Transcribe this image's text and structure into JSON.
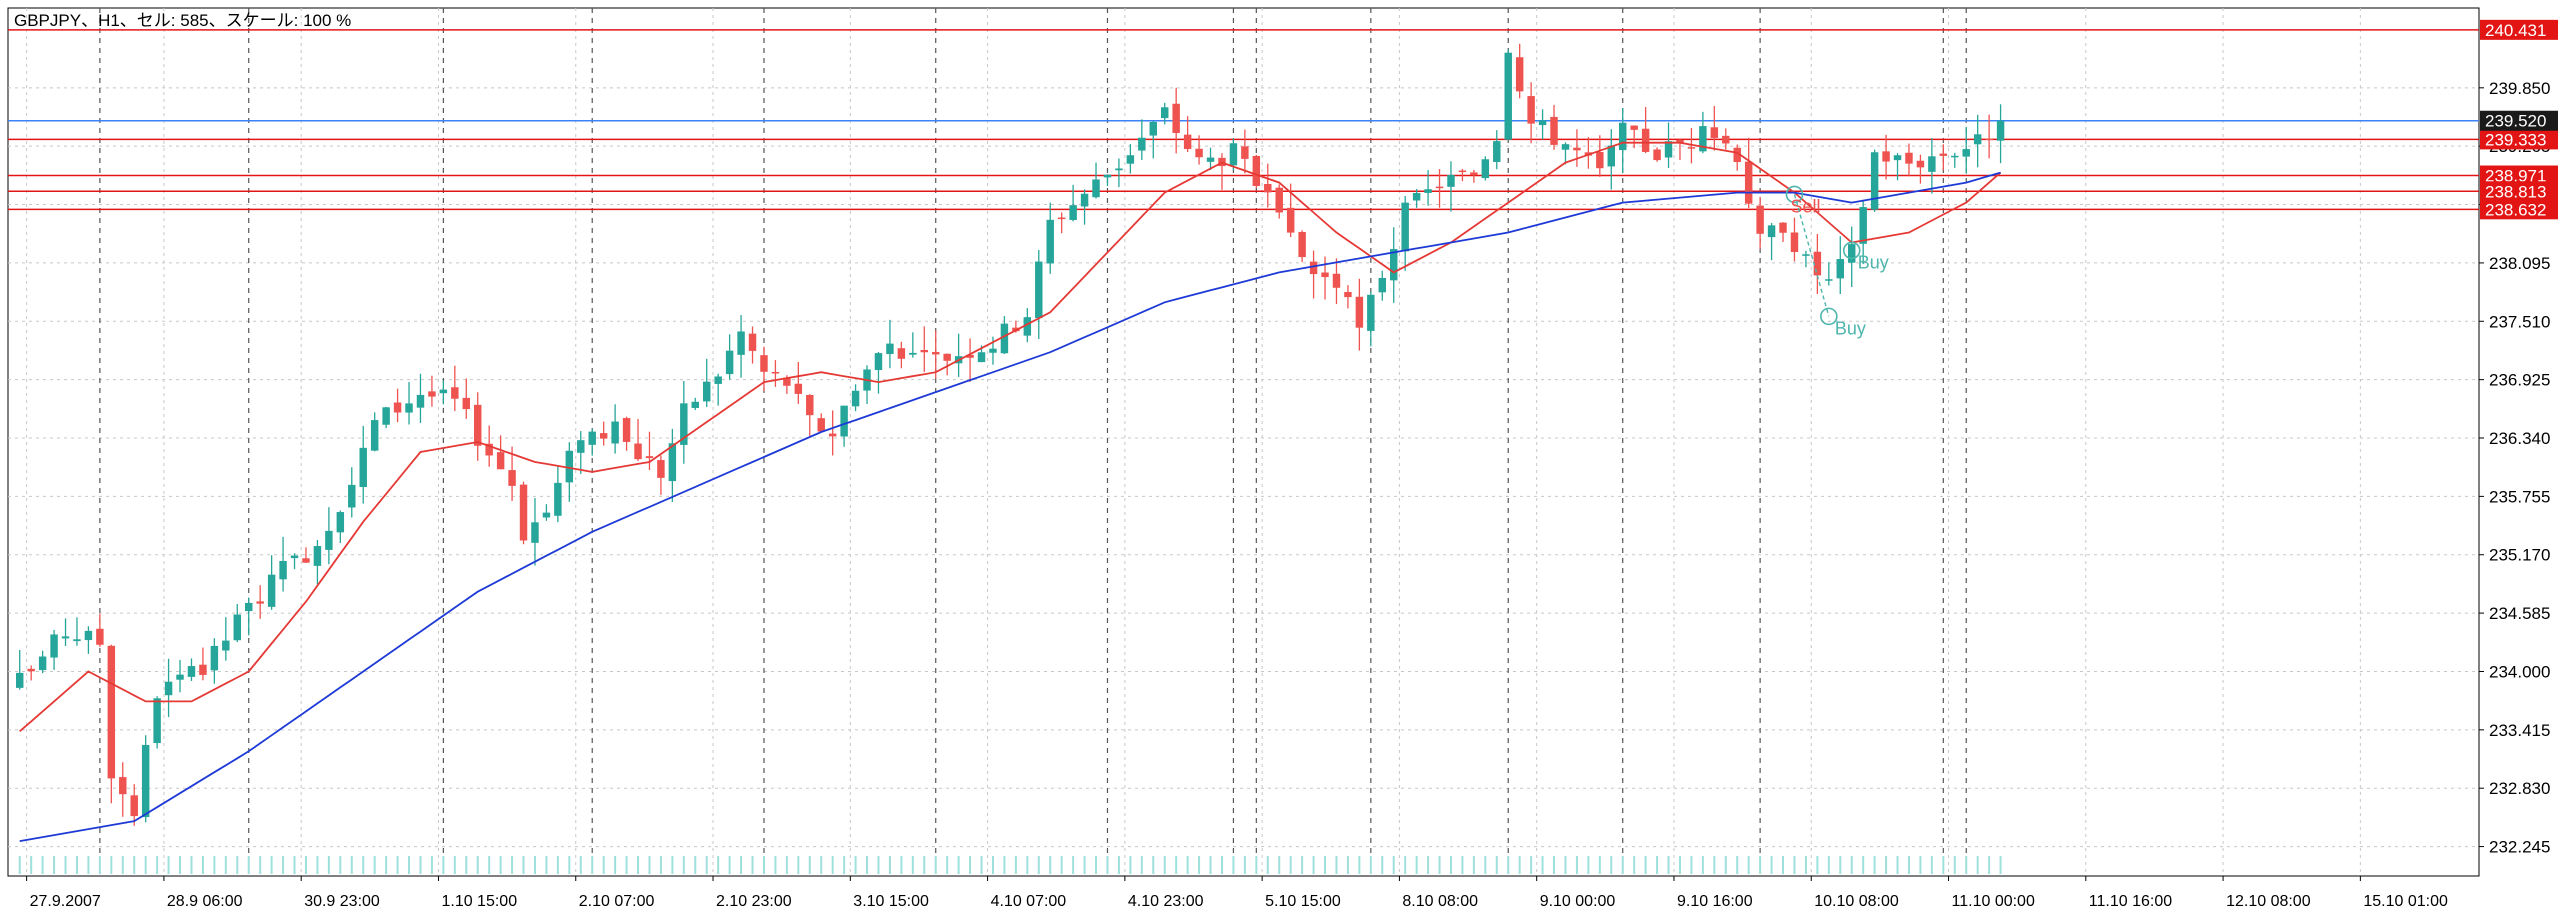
{
  "header": {
    "title": "GBPJPY、H1、セル: 585、スケール: 100 %"
  },
  "colors": {
    "background": "#ffffff",
    "frame": "#000000",
    "grid": "#c8c8c8",
    "bull_body": "#26a69a",
    "bear_body": "#ef5350",
    "fast_ma": "#e53935",
    "slow_ma": "#1e3ad6",
    "resistance": "#e31414",
    "current_price_line": "#3b82f6",
    "price_label_bg": "#e31414",
    "current_label_bg": "#1a1a1a",
    "trade_marker": "#4db6ac",
    "volume": "#9ee0dc"
  },
  "price_levels": [
    {
      "value": 240.431,
      "label": "240.431",
      "kind": "resistance"
    },
    {
      "value": 239.333,
      "label": "239.333",
      "kind": "resistance"
    },
    {
      "value": 238.971,
      "label": "238.971",
      "kind": "resistance"
    },
    {
      "value": 238.813,
      "label": "238.813",
      "kind": "resistance"
    },
    {
      "value": 238.632,
      "label": "238.632",
      "kind": "resistance"
    }
  ],
  "current_price": {
    "value": 239.52,
    "label": "239.520"
  },
  "trade_markers": [
    {
      "label": "Sell",
      "kind": "sell",
      "bar": 155
    },
    {
      "label": "Buy",
      "kind": "buy",
      "bar": 160
    },
    {
      "label": "Buy",
      "kind": "buy",
      "bar": 158
    }
  ],
  "chart_data": {
    "type": "candlestick",
    "symbol": "GBPJPY",
    "timeframe": "H1",
    "y_range": [
      231.95,
      240.65
    ],
    "y_ticks": [
      "239.850",
      "239.265",
      "238.680",
      "238.095",
      "237.510",
      "236.925",
      "236.340",
      "235.755",
      "235.170",
      "234.585",
      "234.000",
      "233.415",
      "232.830",
      "232.245"
    ],
    "x_ticks": [
      "27.9.2007",
      "28.9 06:00",
      "30.9 23:00",
      "1.10 15:00",
      "2.10 07:00",
      "2.10 23:00",
      "3.10 15:00",
      "4.10 07:00",
      "4.10 23:00",
      "5.10 15:00",
      "8.10 08:00",
      "9.10 00:00",
      "9.10 16:00",
      "10.10 08:00",
      "11.10 00:00",
      "11.10 16:00",
      "12.10 08:00",
      "15.10 01:00"
    ],
    "grid": true,
    "bar_count": 174,
    "close_anchors": [
      [
        0,
        233.9
      ],
      [
        4,
        234.4
      ],
      [
        7,
        234.3
      ],
      [
        8,
        233.0
      ],
      [
        10,
        232.6
      ],
      [
        12,
        233.8
      ],
      [
        16,
        234.0
      ],
      [
        19,
        234.5
      ],
      [
        22,
        234.9
      ],
      [
        26,
        235.3
      ],
      [
        29,
        235.9
      ],
      [
        31,
        236.5
      ],
      [
        35,
        236.8
      ],
      [
        38,
        236.7
      ],
      [
        41,
        236.2
      ],
      [
        43,
        235.9
      ],
      [
        44,
        235.4
      ],
      [
        46,
        235.6
      ],
      [
        49,
        236.4
      ],
      [
        52,
        236.4
      ],
      [
        56,
        236.0
      ],
      [
        58,
        236.6
      ],
      [
        61,
        237.0
      ],
      [
        63,
        237.4
      ],
      [
        65,
        237.0
      ],
      [
        67,
        236.9
      ],
      [
        69,
        236.5
      ],
      [
        71,
        236.4
      ],
      [
        73,
        236.9
      ],
      [
        76,
        237.3
      ],
      [
        79,
        237.1
      ],
      [
        82,
        237.2
      ],
      [
        85,
        237.3
      ],
      [
        88,
        237.6
      ],
      [
        90,
        238.5
      ],
      [
        93,
        238.8
      ],
      [
        96,
        239.1
      ],
      [
        100,
        239.6
      ],
      [
        103,
        239.1
      ],
      [
        106,
        239.2
      ],
      [
        108,
        238.9
      ],
      [
        111,
        238.3
      ],
      [
        113,
        238.0
      ],
      [
        115,
        237.9
      ],
      [
        117,
        237.4
      ],
      [
        119,
        238.0
      ],
      [
        121,
        238.6
      ],
      [
        124,
        238.9
      ],
      [
        127,
        239.0
      ],
      [
        129,
        239.4
      ],
      [
        130,
        240.3
      ],
      [
        132,
        239.5
      ],
      [
        135,
        239.3
      ],
      [
        138,
        239.0
      ],
      [
        140,
        239.4
      ],
      [
        143,
        239.2
      ],
      [
        145,
        239.3
      ],
      [
        148,
        239.4
      ],
      [
        150,
        239.2
      ],
      [
        152,
        238.3
      ],
      [
        154,
        238.5
      ],
      [
        156,
        238.1
      ],
      [
        158,
        237.9
      ],
      [
        160,
        238.2
      ],
      [
        162,
        239.2
      ],
      [
        165,
        239.1
      ],
      [
        168,
        239.2
      ],
      [
        171,
        239.3
      ],
      [
        173,
        239.52
      ]
    ],
    "fast_ma_anchors": [
      [
        0,
        233.4
      ],
      [
        6,
        234.0
      ],
      [
        11,
        233.7
      ],
      [
        15,
        233.7
      ],
      [
        20,
        234.0
      ],
      [
        25,
        234.7
      ],
      [
        30,
        235.5
      ],
      [
        35,
        236.2
      ],
      [
        40,
        236.3
      ],
      [
        45,
        236.1
      ],
      [
        50,
        236.0
      ],
      [
        55,
        236.1
      ],
      [
        60,
        236.5
      ],
      [
        65,
        236.9
      ],
      [
        70,
        237.0
      ],
      [
        75,
        236.9
      ],
      [
        80,
        237.0
      ],
      [
        85,
        237.3
      ],
      [
        90,
        237.6
      ],
      [
        95,
        238.2
      ],
      [
        100,
        238.8
      ],
      [
        105,
        239.1
      ],
      [
        110,
        238.9
      ],
      [
        115,
        238.4
      ],
      [
        120,
        238.0
      ],
      [
        125,
        238.3
      ],
      [
        130,
        238.7
      ],
      [
        135,
        239.1
      ],
      [
        140,
        239.3
      ],
      [
        145,
        239.3
      ],
      [
        150,
        239.2
      ],
      [
        155,
        238.8
      ],
      [
        160,
        238.3
      ],
      [
        165,
        238.4
      ],
      [
        170,
        238.7
      ],
      [
        173,
        239.0
      ]
    ],
    "slow_ma_anchors": [
      [
        0,
        232.3
      ],
      [
        10,
        232.5
      ],
      [
        20,
        233.2
      ],
      [
        30,
        234.0
      ],
      [
        40,
        234.8
      ],
      [
        50,
        235.4
      ],
      [
        60,
        235.9
      ],
      [
        70,
        236.4
      ],
      [
        80,
        236.8
      ],
      [
        90,
        237.2
      ],
      [
        100,
        237.7
      ],
      [
        110,
        238.0
      ],
      [
        120,
        238.2
      ],
      [
        130,
        238.4
      ],
      [
        140,
        238.7
      ],
      [
        150,
        238.8
      ],
      [
        155,
        238.8
      ],
      [
        160,
        238.7
      ],
      [
        165,
        238.8
      ],
      [
        170,
        238.9
      ],
      [
        173,
        239.0
      ]
    ],
    "session_separator_bars": [
      7,
      20,
      37,
      50,
      65,
      80,
      95,
      106,
      108,
      118,
      130,
      140,
      152,
      168,
      170
    ]
  }
}
